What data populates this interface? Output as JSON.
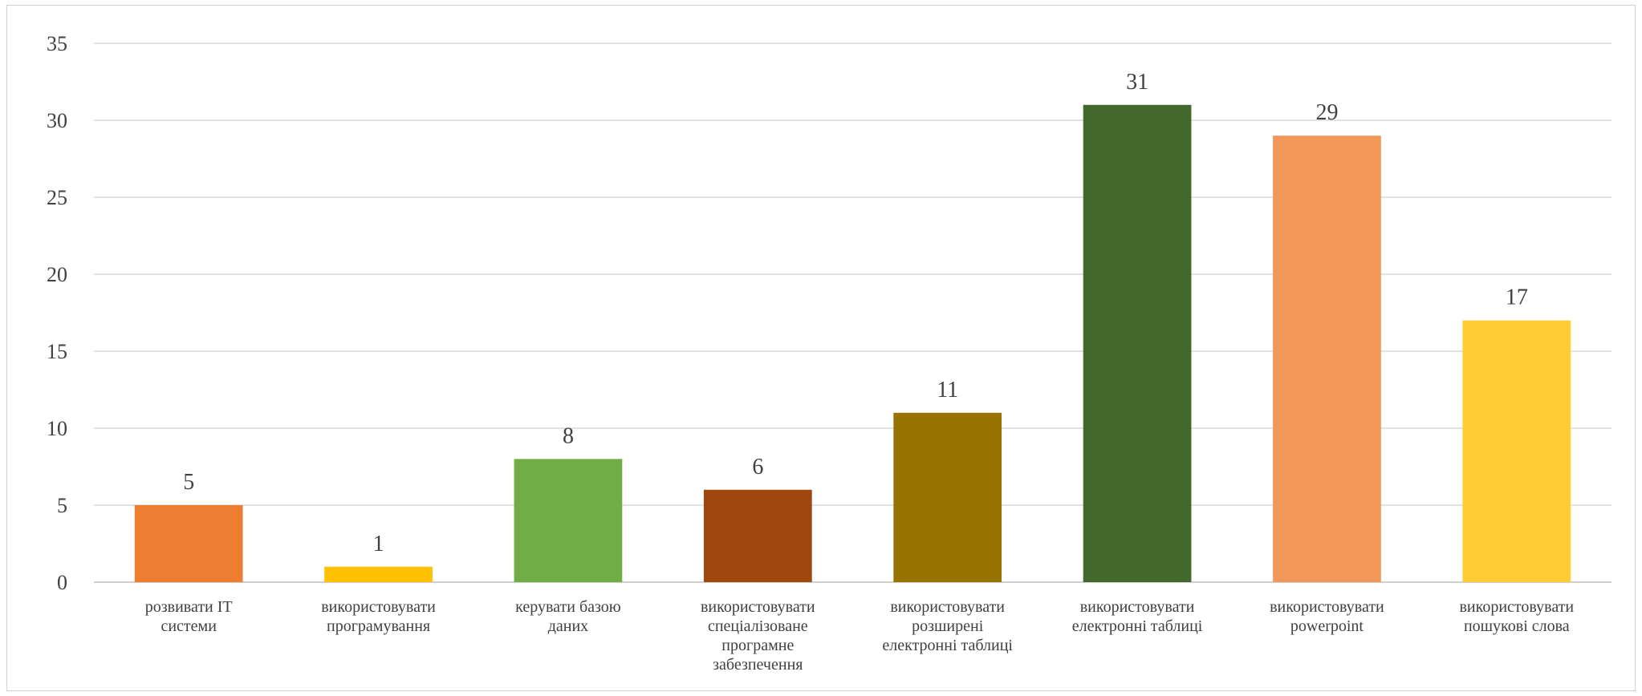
{
  "chart_data": {
    "type": "bar",
    "title": "",
    "xlabel": "",
    "ylabel": "",
    "ylim": [
      0,
      35
    ],
    "yticks": [
      0,
      5,
      10,
      15,
      20,
      25,
      30,
      35
    ],
    "grid": true,
    "legend": "none",
    "categories": [
      [
        "розвивати IT",
        "системи"
      ],
      [
        "використовувати",
        "програмування"
      ],
      [
        "керувати базою",
        "даних"
      ],
      [
        "використовувати",
        "спеціалізоване",
        "програмне",
        "забезпечення"
      ],
      [
        "використовувати",
        "розширені",
        "електронні таблиці"
      ],
      [
        "використовувати",
        "електронні таблиці"
      ],
      [
        "використовувати",
        "powerpoint"
      ],
      [
        "використовувати",
        "пошукові слова"
      ]
    ],
    "values": [
      5,
      1,
      8,
      6,
      11,
      31,
      29,
      17
    ],
    "colors": [
      "#ED7D31",
      "#FFC000",
      "#70AD47",
      "#9E480E",
      "#997300",
      "#43682B",
      "#F1975A",
      "#FFCD33"
    ]
  }
}
